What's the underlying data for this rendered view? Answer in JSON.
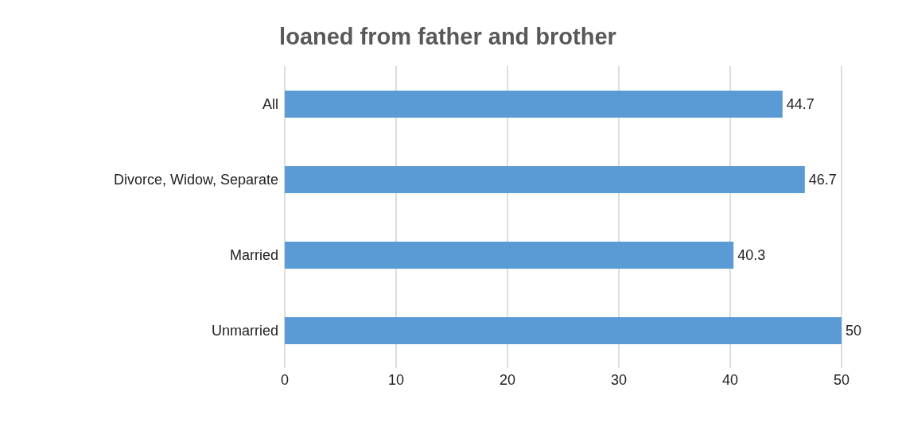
{
  "chart_data": {
    "type": "bar",
    "title": "loaned from father and brother",
    "orientation": "horizontal",
    "categories": [
      "All",
      "Divorce, Widow, Separate",
      "Married",
      "Unmarried"
    ],
    "values": [
      44.7,
      46.7,
      40.3,
      50
    ],
    "color": "#5b9bd5",
    "xlim": [
      0,
      50
    ],
    "xticks": [
      0,
      10,
      20,
      30,
      40,
      50
    ],
    "grid": "x",
    "data_labels": true
  }
}
